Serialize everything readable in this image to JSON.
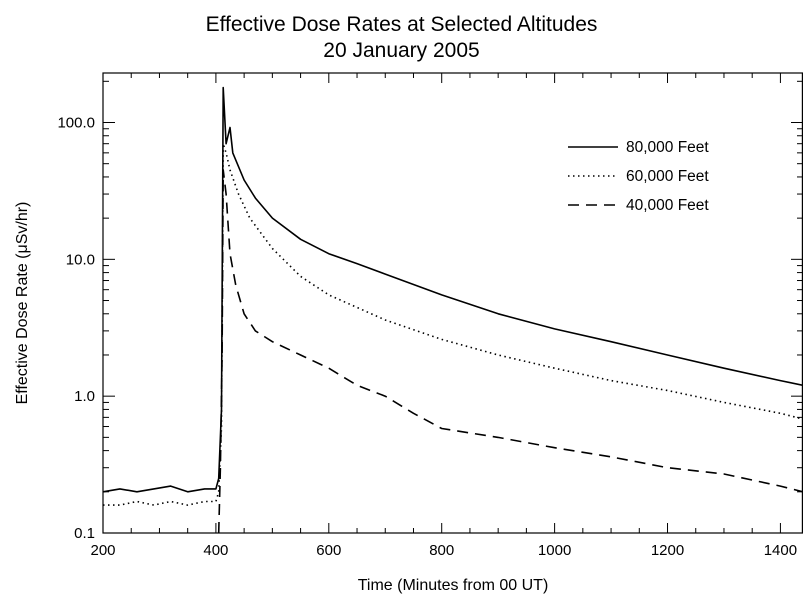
{
  "chart_data": {
    "type": "line",
    "title": "Effective Dose Rates at Selected Altitudes",
    "subtitle": "20 January 2005",
    "xlabel": "Time (Minutes from 00 UT)",
    "ylabel": "Effective Dose Rate (μSv/hr)",
    "xlim": [
      200,
      1440
    ],
    "ylim": [
      0.1,
      230
    ],
    "yscale": "log",
    "xticks": [
      200,
      400,
      600,
      800,
      1000,
      1200,
      1400
    ],
    "yticks": [
      0.1,
      1.0,
      10.0,
      100.0
    ],
    "xtick_labels": [
      "200",
      "400",
      "600",
      "800",
      "1000",
      "1200",
      "1400"
    ],
    "ytick_labels": [
      "0.1",
      "1.0",
      "10.0",
      "100.0"
    ],
    "grid": false,
    "legend_position": "top-right",
    "series": [
      {
        "name": "80,000 Feet",
        "style": "solid",
        "x": [
          200,
          230,
          260,
          290,
          320,
          350,
          380,
          400,
          405,
          410,
          413,
          418,
          425,
          430,
          450,
          470,
          500,
          550,
          600,
          650,
          700,
          800,
          900,
          1000,
          1100,
          1200,
          1300,
          1400,
          1440
        ],
        "y": [
          0.2,
          0.21,
          0.2,
          0.21,
          0.22,
          0.2,
          0.21,
          0.21,
          0.25,
          0.8,
          180,
          70,
          92,
          60,
          38,
          28,
          20,
          14,
          11,
          9.3,
          7.8,
          5.5,
          4.0,
          3.1,
          2.5,
          2.0,
          1.6,
          1.3,
          1.2
        ]
      },
      {
        "name": "60,000 Feet",
        "style": "dotted",
        "x": [
          200,
          230,
          260,
          290,
          320,
          350,
          380,
          400,
          405,
          410,
          413,
          418,
          425,
          440,
          460,
          500,
          550,
          600,
          700,
          800,
          900,
          1000,
          1100,
          1200,
          1300,
          1400,
          1440
        ],
        "y": [
          0.16,
          0.16,
          0.17,
          0.16,
          0.17,
          0.16,
          0.17,
          0.17,
          0.2,
          0.6,
          70,
          60,
          45,
          30,
          20,
          12,
          7.5,
          5.5,
          3.6,
          2.6,
          2.0,
          1.6,
          1.3,
          1.1,
          0.9,
          0.75,
          0.68
        ]
      },
      {
        "name": "40,000 Feet",
        "style": "dashed",
        "x": [
          405,
          408,
          411,
          413,
          418,
          425,
          435,
          450,
          470,
          500,
          550,
          600,
          650,
          700,
          750,
          800,
          900,
          1000,
          1100,
          1200,
          1300,
          1400,
          1440
        ],
        "y": [
          0.1,
          0.3,
          2.0,
          45,
          30,
          11,
          6.5,
          4.0,
          3.0,
          2.5,
          2.0,
          1.6,
          1.2,
          1.0,
          0.75,
          0.58,
          0.5,
          0.42,
          0.36,
          0.3,
          0.27,
          0.22,
          0.2
        ]
      }
    ]
  }
}
